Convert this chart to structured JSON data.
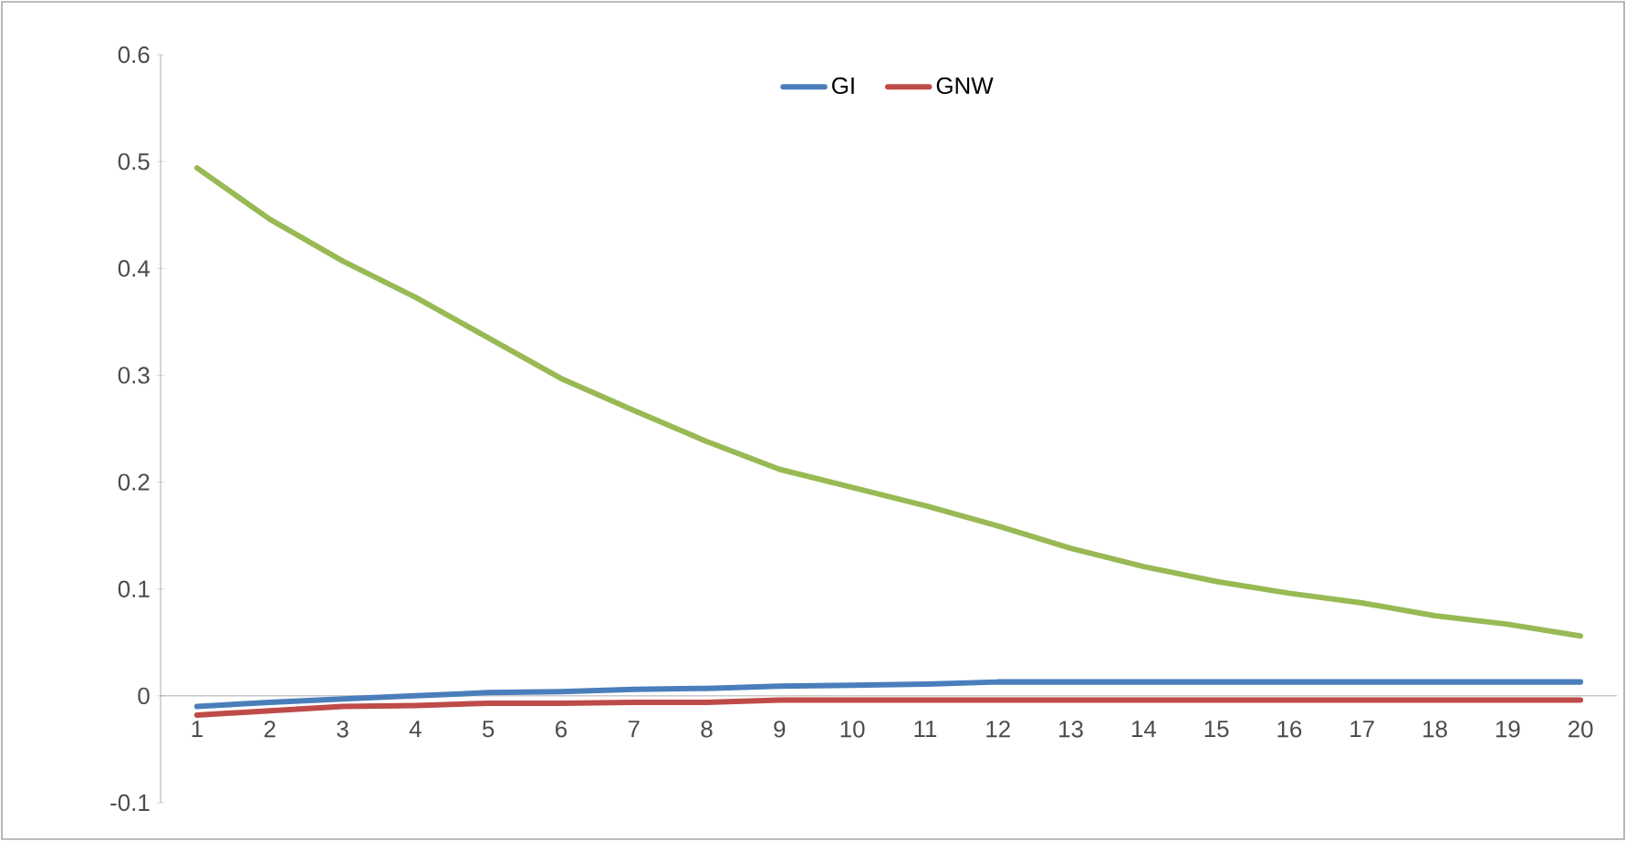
{
  "chart_data": {
    "type": "line",
    "categories": [
      "1",
      "2",
      "3",
      "4",
      "5",
      "6",
      "7",
      "8",
      "9",
      "10",
      "11",
      "12",
      "13",
      "14",
      "15",
      "16",
      "17",
      "18",
      "19",
      "20"
    ],
    "series": [
      {
        "name": "GI",
        "color": "#4a7ebb",
        "values": [
          -0.01,
          -0.006,
          -0.003,
          0,
          0.003,
          0.004,
          0.006,
          0.007,
          0.009,
          0.01,
          0.011,
          0.013,
          0.013,
          0.013,
          0.013,
          0.013,
          0.013,
          0.013,
          0.013,
          0.013
        ]
      },
      {
        "name": "GNW",
        "color": "#be4b48",
        "values": [
          -0.018,
          -0.014,
          -0.01,
          -0.009,
          -0.007,
          -0.007,
          -0.006,
          -0.006,
          -0.004,
          -0.004,
          -0.004,
          -0.004,
          -0.004,
          -0.004,
          -0.004,
          -0.004,
          -0.004,
          -0.004,
          -0.004,
          -0.004
        ]
      },
      {
        "color": "#98b954",
        "values": [
          0.494,
          0.446,
          0.407,
          0.373,
          0.335,
          0.297,
          0.267,
          0.238,
          0.212,
          0.195,
          0.178,
          0.159,
          0.138,
          0.121,
          0.107,
          0.096,
          0.087,
          0.075,
          0.067,
          0.056
        ]
      }
    ],
    "ylim": [
      -0.1,
      0.6
    ],
    "yticks": [
      -0.1,
      0,
      0.1,
      0.2,
      0.3,
      0.4,
      0.5,
      0.6
    ],
    "legend": "top",
    "grid": false,
    "marker": "none",
    "line_style": "solid"
  }
}
